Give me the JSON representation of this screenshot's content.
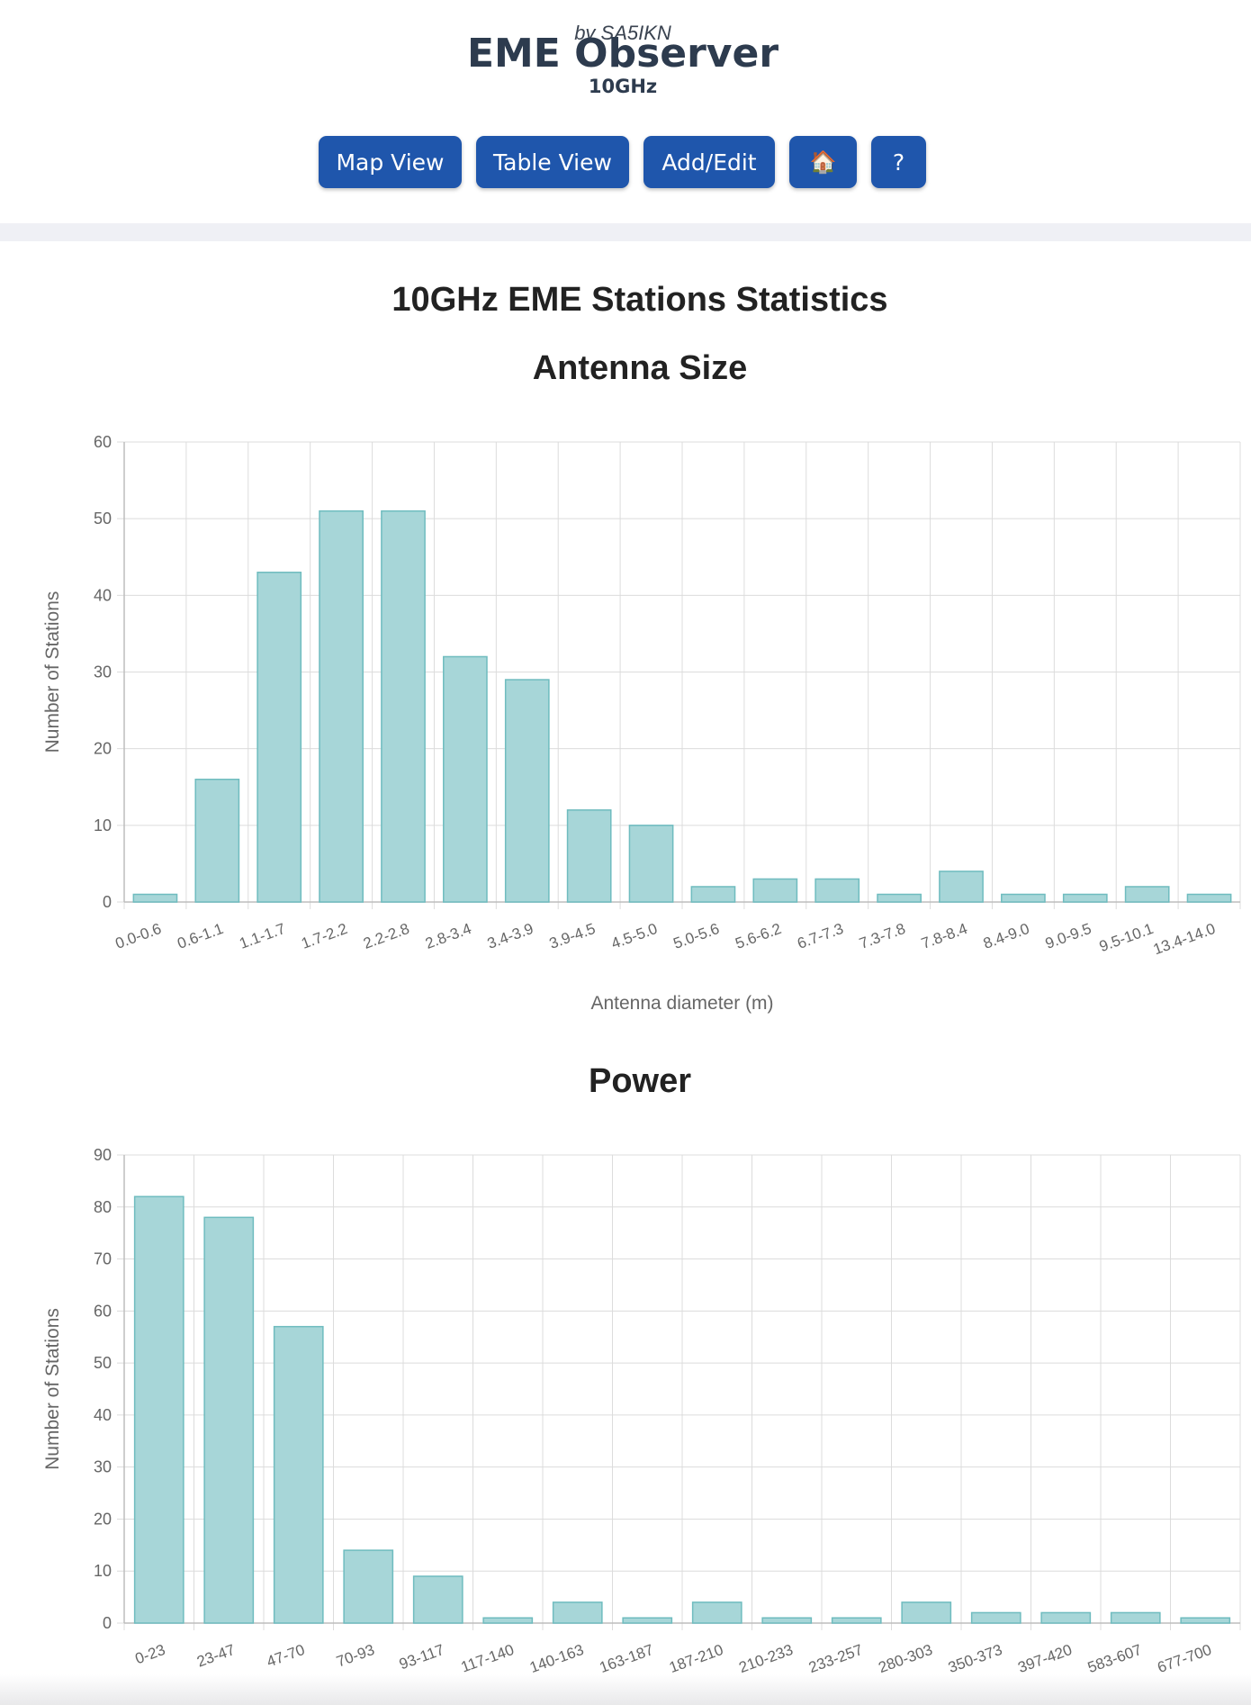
{
  "header": {
    "byline": "by SA5IKN",
    "title": "EME Observer",
    "band": "10GHz"
  },
  "nav": {
    "map_view": "Map View",
    "table_view": "Table View",
    "add_edit": "Add/Edit",
    "home": "🏠",
    "help": "?"
  },
  "page_title": "10GHz EME Stations Statistics",
  "sections": {
    "antenna_title": "Antenna Size",
    "power_title": "Power"
  },
  "colors": {
    "accent": "#1f56ac",
    "bar_fill": "#a7d6d8",
    "bar_stroke": "#6fbcbf"
  },
  "chart_data": [
    {
      "type": "bar",
      "title": "Antenna Size",
      "xlabel": "Antenna diameter (m)",
      "ylabel": "Number of Stations",
      "ylim": [
        0,
        60
      ],
      "yticks": [
        0,
        10,
        20,
        30,
        40,
        50,
        60
      ],
      "grid": true,
      "legend": "none",
      "categories": [
        "0.0-0.6",
        "0.6-1.1",
        "1.1-1.7",
        "1.7-2.2",
        "2.2-2.8",
        "2.8-3.4",
        "3.4-3.9",
        "3.9-4.5",
        "4.5-5.0",
        "5.0-5.6",
        "5.6-6.2",
        "6.7-7.3",
        "7.3-7.8",
        "7.8-8.4",
        "8.4-9.0",
        "9.0-9.5",
        "9.5-10.1",
        "13.4-14.0"
      ],
      "values": [
        1,
        16,
        43,
        51,
        51,
        32,
        29,
        12,
        10,
        2,
        3,
        3,
        1,
        4,
        1,
        1,
        2,
        1
      ]
    },
    {
      "type": "bar",
      "title": "Power",
      "xlabel": "",
      "ylabel": "Number of Stations",
      "ylim": [
        0,
        90
      ],
      "yticks": [
        0,
        10,
        20,
        30,
        40,
        50,
        60,
        70,
        80,
        90
      ],
      "grid": true,
      "legend": "none",
      "categories": [
        "0-23",
        "23-47",
        "47-70",
        "70-93",
        "93-117",
        "117-140",
        "140-163",
        "163-187",
        "187-210",
        "210-233",
        "233-257",
        "280-303",
        "350-373",
        "397-420",
        "583-607",
        "677-700"
      ],
      "values": [
        82,
        78,
        57,
        14,
        9,
        1,
        4,
        1,
        4,
        1,
        1,
        4,
        2,
        2,
        2,
        1
      ]
    }
  ]
}
